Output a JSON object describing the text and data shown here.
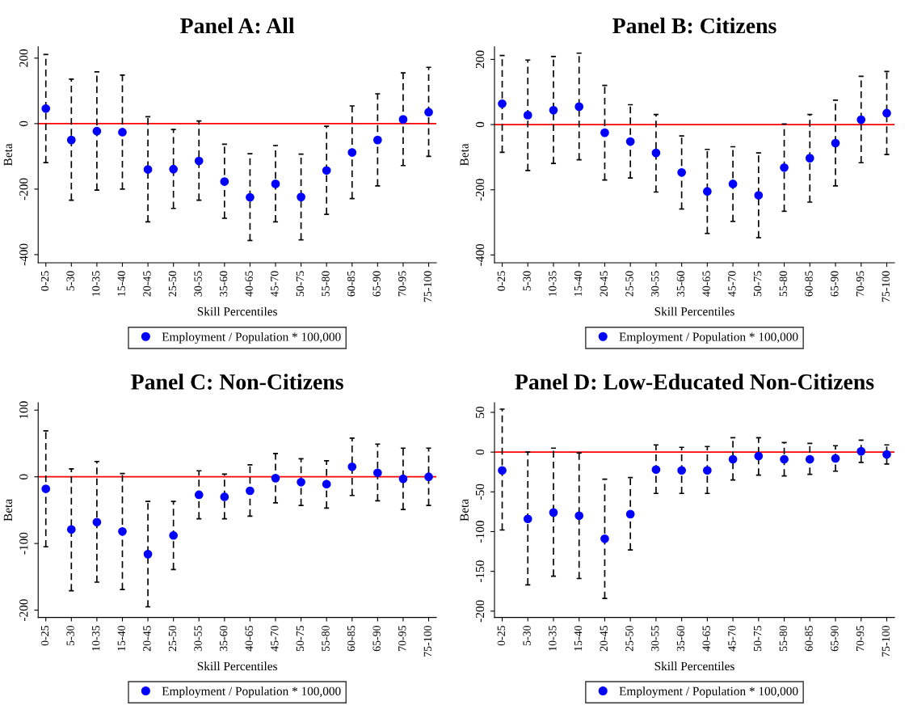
{
  "chart_data": [
    {
      "type": "scatter",
      "title": "Panel A: All",
      "xlabel": "Skill Percentiles",
      "ylabel": "Beta",
      "categories": [
        "0-25",
        "5-30",
        "10-35",
        "15-40",
        "20-45",
        "25-50",
        "30-55",
        "35-60",
        "40-65",
        "45-70",
        "50-75",
        "55-80",
        "60-85",
        "65-90",
        "70-95",
        "75-100"
      ],
      "series": [
        {
          "name": "Employment / Population * 100,000",
          "color": "#0000ff",
          "values": [
            46,
            -50,
            -23,
            -26,
            -140,
            -139,
            -114,
            -177,
            -225,
            -184,
            -224,
            -143,
            -88,
            -50,
            13,
            35
          ],
          "errors": [
            [
              -119,
              211
            ],
            [
              -234,
              136
            ],
            [
              -203,
              158
            ],
            [
              -200,
              148
            ],
            [
              -300,
              21
            ],
            [
              -259,
              -18
            ],
            [
              -234,
              8
            ],
            [
              -289,
              -63
            ],
            [
              -357,
              -92
            ],
            [
              -300,
              -67
            ],
            [
              -355,
              -93
            ],
            [
              -277,
              -8
            ],
            [
              -229,
              54
            ],
            [
              -190,
              91
            ],
            [
              -128,
              155
            ],
            [
              -100,
              172
            ]
          ]
        }
      ],
      "ylim": [
        -425,
        235
      ],
      "yticks": [
        -400,
        -200,
        0,
        200
      ],
      "ref_lines": [
        {
          "axis": "y",
          "value": 0,
          "color": "#ff0000"
        }
      ],
      "legend": "bottom",
      "marker": "circle"
    },
    {
      "type": "scatter",
      "title": "Panel B: Citizens",
      "xlabel": "Skill Percentiles",
      "ylabel": "Beta",
      "categories": [
        "0-25",
        "5-30",
        "10-35",
        "15-40",
        "20-45",
        "25-50",
        "30-55",
        "35-60",
        "40-65",
        "45-70",
        "50-75",
        "55-80",
        "60-85",
        "65-90",
        "70-95",
        "75-100"
      ],
      "series": [
        {
          "name": "Employment / Population * 100,000",
          "color": "#0000ff",
          "values": [
            64,
            29,
            44,
            55,
            -25,
            -52,
            -87,
            -147,
            -205,
            -182,
            -217,
            -132,
            -103,
            -57,
            15,
            35
          ],
          "errors": [
            [
              -85,
              212
            ],
            [
              -141,
              198
            ],
            [
              -119,
              209
            ],
            [
              -108,
              219
            ],
            [
              -170,
              120
            ],
            [
              -164,
              61
            ],
            [
              -207,
              31
            ],
            [
              -259,
              -35
            ],
            [
              -334,
              -76
            ],
            [
              -297,
              -68
            ],
            [
              -347,
              -87
            ],
            [
              -266,
              2
            ],
            [
              -238,
              31
            ],
            [
              -188,
              75
            ],
            [
              -117,
              148
            ],
            [
              -92,
              163
            ]
          ]
        }
      ],
      "ylim": [
        -424,
        239
      ],
      "yticks": [
        -400,
        -200,
        0,
        200
      ],
      "ref_lines": [
        {
          "axis": "y",
          "value": 0,
          "color": "#ff0000"
        }
      ],
      "legend": "bottom",
      "marker": "circle"
    },
    {
      "type": "scatter",
      "title": "Panel C: Non-Citizens",
      "xlabel": "Skill Percentiles",
      "ylabel": "Beta",
      "categories": [
        "0-25",
        "5-30",
        "10-35",
        "15-40",
        "20-45",
        "25-50",
        "30-55",
        "35-60",
        "40-65",
        "45-70",
        "50-75",
        "55-80",
        "60-85",
        "65-90",
        "70-95",
        "75-100"
      ],
      "series": [
        {
          "name": "Employment / Population * 100,000",
          "color": "#0000ff",
          "values": [
            -18,
            -79,
            -68,
            -82,
            -116,
            -88,
            -27,
            -30,
            -21,
            -2,
            -8,
            -11,
            15,
            6,
            -3,
            0
          ],
          "errors": [
            [
              -105,
              69
            ],
            [
              -171,
              12
            ],
            [
              -158,
              23
            ],
            [
              -169,
              5
            ],
            [
              -195,
              -37
            ],
            [
              -139,
              -37
            ],
            [
              -63,
              9
            ],
            [
              -63,
              4
            ],
            [
              -59,
              18
            ],
            [
              -39,
              35
            ],
            [
              -43,
              27
            ],
            [
              -47,
              24
            ],
            [
              -28,
              58
            ],
            [
              -36,
              49
            ],
            [
              -49,
              43
            ],
            [
              -43,
              43
            ]
          ]
        }
      ],
      "ylim": [
        -211,
        111
      ],
      "yticks": [
        -200,
        -100,
        0,
        100
      ],
      "ref_lines": [
        {
          "axis": "y",
          "value": 0,
          "color": "#ff0000"
        }
      ],
      "legend": "bottom",
      "marker": "circle"
    },
    {
      "type": "scatter",
      "title": "Panel D: Low-Educated Non-Citizens",
      "xlabel": "Skill Percentiles",
      "ylabel": "Beta",
      "categories": [
        "0-25",
        "5-30",
        "10-35",
        "15-40",
        "20-45",
        "25-50",
        "30-55",
        "35-60",
        "40-65",
        "45-70",
        "50-75",
        "55-80",
        "60-85",
        "65-90",
        "70-95",
        "75-100"
      ],
      "series": [
        {
          "name": "Employment / Population * 100,000",
          "color": "#0000ff",
          "values": [
            -23,
            -84,
            -76,
            -80,
            -109,
            -78,
            -22,
            -23,
            -23,
            -9,
            -5,
            -9,
            -9,
            -8,
            1,
            -3
          ],
          "errors": [
            [
              -98,
              54
            ],
            [
              -167,
              0
            ],
            [
              -156,
              5
            ],
            [
              -159,
              -1
            ],
            [
              -184,
              -34
            ],
            [
              -123,
              -32
            ],
            [
              -52,
              9
            ],
            [
              -52,
              6
            ],
            [
              -52,
              7
            ],
            [
              -35,
              18
            ],
            [
              -29,
              18
            ],
            [
              -30,
              12
            ],
            [
              -28,
              11
            ],
            [
              -24,
              8
            ],
            [
              -13,
              15
            ],
            [
              -15,
              9
            ]
          ]
        }
      ],
      "ylim": [
        -208,
        62
      ],
      "yticks": [
        -200,
        -150,
        -100,
        -50,
        0,
        50
      ],
      "ref_lines": [
        {
          "axis": "y",
          "value": 0,
          "color": "#ff0000"
        }
      ],
      "legend": "bottom",
      "marker": "circle"
    }
  ]
}
